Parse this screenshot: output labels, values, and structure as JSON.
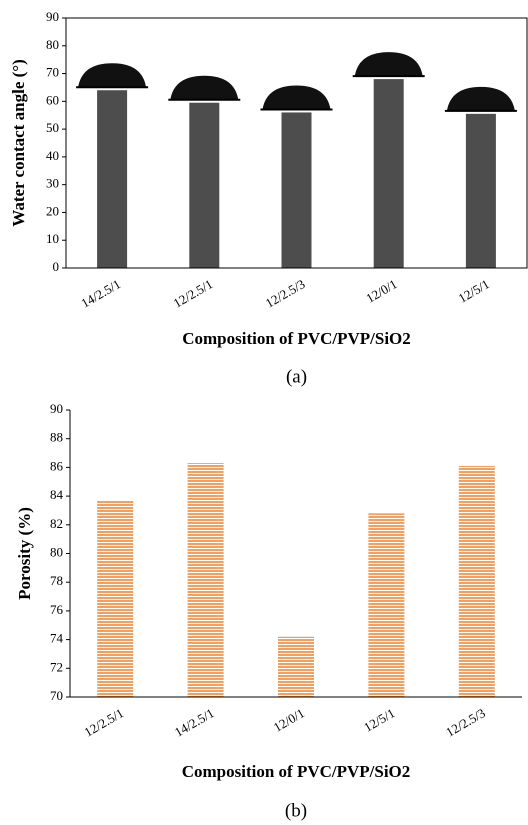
{
  "chart_data": [
    {
      "type": "bar",
      "y_label": "Water contact angle (°)",
      "x_label": "Composition of PVC/PVP/SiO2",
      "caption": "(a)",
      "categories": [
        "14/2.5/1",
        "12/2.5/1",
        "12/2.5/3",
        "12/0/1",
        "12/5/1"
      ],
      "values": [
        64,
        59.5,
        56,
        68,
        55.5
      ],
      "color": "#4d4d4d",
      "ylim": [
        0,
        90
      ],
      "yticks": [
        0,
        10,
        20,
        30,
        40,
        50,
        60,
        70,
        80,
        90
      ]
    },
    {
      "type": "bar",
      "y_label": "Porosity (%)",
      "x_label": "Composition of  PVC/PVP/SiO2",
      "caption": "(b)",
      "categories": [
        "12/2.5/1",
        "14/2.5/1",
        "12/0/1",
        "12/5/1",
        "12/2.5/3"
      ],
      "values": [
        83.7,
        86.3,
        74.2,
        82.8,
        86.1
      ],
      "color": "#f0a060",
      "ylim": [
        70,
        90
      ],
      "yticks": [
        70,
        72,
        74,
        76,
        78,
        80,
        82,
        84,
        86,
        88,
        90
      ]
    }
  ]
}
